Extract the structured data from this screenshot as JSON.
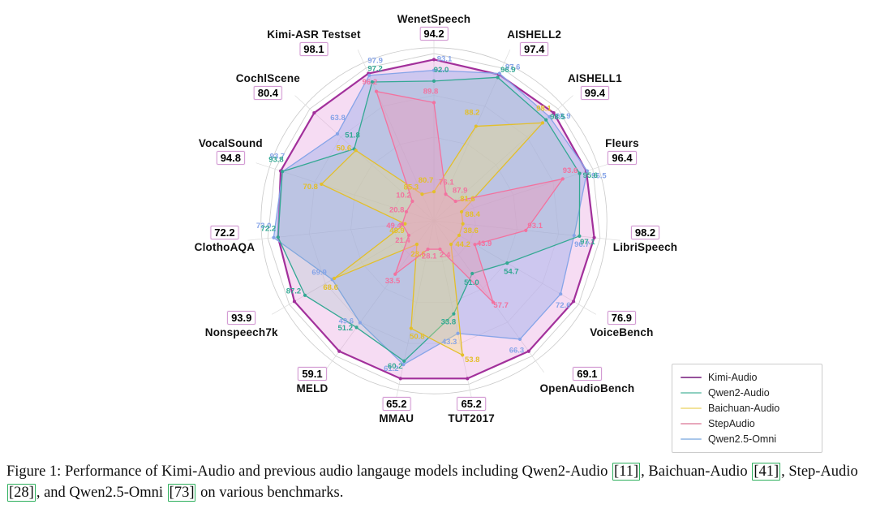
{
  "figure": {
    "caption_fragments": [
      {
        "text": "Figure 1: Performance of Kimi-Audio and previous audio langauge models including Qwen2-Audio "
      },
      {
        "cite": "[11]"
      },
      {
        "text": ", Baichuan-Audio "
      },
      {
        "cite": "[41]"
      },
      {
        "text": ", Step-Audio "
      },
      {
        "cite": "[28]"
      },
      {
        "text": ", and Qwen2.5-Omni "
      },
      {
        "cite": "[73]"
      },
      {
        "text": " on various benchmarks."
      }
    ]
  },
  "legend": {
    "position": "lower-right",
    "items": [
      "Kimi-Audio",
      "Qwen2-Audio",
      "Baichuan-Audio",
      "StepAudio",
      "Qwen2.5-Omni"
    ]
  },
  "chart_data": {
    "type": "radar",
    "title": "",
    "axes": [
      "WenetSpeech",
      "AISHELL2",
      "AISHELL1",
      "Fleurs",
      "LibriSpeech",
      "VoiceBench",
      "OpenAudioBench",
      "TUT2017",
      "MMAU",
      "MELD",
      "Nonspeech7k",
      "ClothoAQA",
      "VocalSound",
      "CochlScene",
      "Kimi-ASR Testset"
    ],
    "axis_normalization": "per-axis min-max",
    "grid": true,
    "legend_position": "lower right",
    "series": [
      {
        "name": "Kimi-Audio",
        "boxed_labels": true,
        "stroke": "#a2309b",
        "fill": "rgba(225,140,215,0.30)",
        "legend_color": "#96519b",
        "values": [
          94.2,
          97.4,
          99.4,
          96.4,
          98.2,
          76.9,
          69.1,
          65.2,
          65.2,
          59.1,
          93.9,
          72.2,
          94.8,
          80.4,
          98.1
        ]
      },
      {
        "name": "Qwen2-Audio",
        "boxed_labels": false,
        "stroke": "#33a893",
        "fill": "rgba(110,185,170,0.18)",
        "legend_color": "#8fd0c0",
        "values": [
          92.0,
          96.9,
          98.5,
          95.6,
          97.1,
          54.7,
          51.0,
          33.8,
          60.2,
          51.2,
          87.2,
          72.2,
          93.8,
          51.8,
          97.2
        ]
      },
      {
        "name": "Baichuan-Audio",
        "boxed_labels": false,
        "stroke": "#e3bf2a",
        "fill": "rgba(244,224,120,0.35)",
        "legend_color": "#f2e39a",
        "values": [
          80.7,
          88.2,
          98.1,
          81.6,
          88.4,
          38.6,
          44.2,
          53.8,
          50.8,
          23.6,
          68.6,
          48.9,
          70.8,
          50.6,
          85.3
        ]
      },
      {
        "name": "StepAudio",
        "boxed_labels": false,
        "stroke": "#f2729f",
        "fill": "rgba(244,150,185,0.42)",
        "legend_color": "#e8a8bc",
        "values": [
          89.8,
          76.1,
          87.9,
          93.6,
          93.1,
          43.9,
          57.7,
          2.4,
          28.1,
          33.5,
          21.4,
          49.4,
          20.8,
          10.2,
          96.2
        ]
      },
      {
        "name": "Qwen2.5-Omni",
        "boxed_labels": false,
        "stroke": "#86a4e8",
        "fill": "rgba(160,175,235,0.48)",
        "legend_color": "#a9c6ea",
        "values": [
          93.1,
          97.6,
          98.9,
          96.5,
          96.7,
          72.6,
          66.3,
          43.3,
          61.2,
          49.6,
          69.9,
          73.0,
          93.7,
          63.8,
          97.9
        ]
      }
    ],
    "draw_order": [
      0,
      4,
      1,
      2,
      3
    ]
  }
}
